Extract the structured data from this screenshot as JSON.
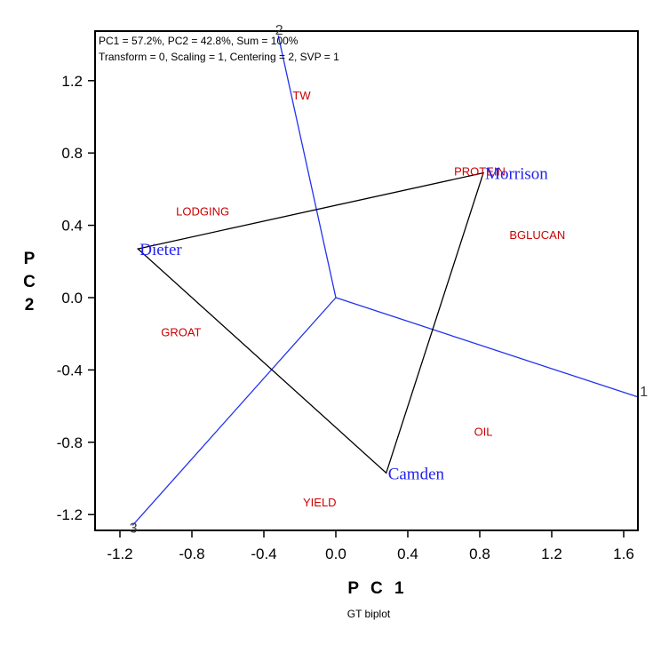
{
  "chart_data": {
    "type": "scatter",
    "subtype": "GGE biplot (which-won-where polygon)",
    "info_line_1": "PC1 = 57.2%, PC2 = 42.8%, Sum = 100%",
    "info_line_2": "Transform = 0, Scaling = 1, Centering = 2, SVP = 1",
    "xlabel": "P C 1",
    "ylabel": "P C 2",
    "caption": "GT biplot",
    "xlim": [
      -1.33,
      1.68
    ],
    "ylim": [
      -1.3,
      1.45
    ],
    "xticks": [
      "-1.2",
      "-0.8",
      "-0.4",
      "0.0",
      "0.4",
      "0.8",
      "1.2",
      "1.6"
    ],
    "yticks": [
      "-1.2",
      "-0.8",
      "-0.4",
      "0.0",
      "0.4",
      "0.8",
      "1.2"
    ],
    "xtick_values": [
      -1.2,
      -0.8,
      -0.4,
      0.0,
      0.4,
      0.8,
      1.2,
      1.6
    ],
    "ytick_values": [
      -1.2,
      -0.8,
      -0.4,
      0.0,
      0.4,
      0.8,
      1.2
    ],
    "genotypes": [
      {
        "name": "Morrison",
        "x": 0.82,
        "y": 0.69
      },
      {
        "name": "Dieter",
        "x": -1.1,
        "y": 0.27
      },
      {
        "name": "Camden",
        "x": 0.28,
        "y": -0.97
      }
    ],
    "polygon_order": [
      "Morrison",
      "Dieter",
      "Camden"
    ],
    "traits": [
      {
        "name": "TW",
        "x": -0.19,
        "y": 1.12
      },
      {
        "name": "PROTEIN",
        "x": 0.8,
        "y": 0.7
      },
      {
        "name": "LODGING",
        "x": -0.74,
        "y": 0.48
      },
      {
        "name": "BGLUCAN",
        "x": 1.12,
        "y": 0.35
      },
      {
        "name": "GROAT",
        "x": -0.86,
        "y": -0.19
      },
      {
        "name": "OIL",
        "x": 0.82,
        "y": -0.74
      },
      {
        "name": "YIELD",
        "x": -0.09,
        "y": -1.13
      }
    ],
    "perpendicular_rays": [
      {
        "label": "1",
        "x": 1.68,
        "y": -0.55
      },
      {
        "label": "2",
        "x": -0.32,
        "y": 1.45
      },
      {
        "label": "3",
        "x": -1.13,
        "y": -1.26
      }
    ],
    "colors": {
      "genotype": "#2222ee",
      "trait": "#cc0000",
      "ray": "#2233ee",
      "polygon": "#000000"
    }
  }
}
